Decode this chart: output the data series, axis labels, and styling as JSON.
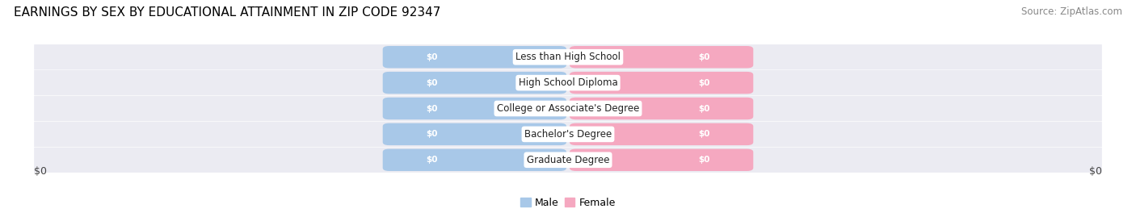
{
  "title": "EARNINGS BY SEX BY EDUCATIONAL ATTAINMENT IN ZIP CODE 92347",
  "source": "Source: ZipAtlas.com",
  "categories": [
    "Less than High School",
    "High School Diploma",
    "College or Associate's Degree",
    "Bachelor's Degree",
    "Graduate Degree"
  ],
  "male_values": [
    0,
    0,
    0,
    0,
    0
  ],
  "female_values": [
    0,
    0,
    0,
    0,
    0
  ],
  "male_color": "#a8c8e8",
  "female_color": "#f5a8c0",
  "male_label": "Male",
  "female_label": "Female",
  "xlabel_left": "$0",
  "xlabel_right": "$0",
  "title_fontsize": 11,
  "source_fontsize": 8.5,
  "label_fontsize": 9,
  "value_fontsize": 7.5,
  "category_fontsize": 8.5,
  "tick_fontsize": 9,
  "background_color": "#ffffff",
  "row_bg_color": "#ebebf2",
  "row_line_color": "#d8d8e8"
}
